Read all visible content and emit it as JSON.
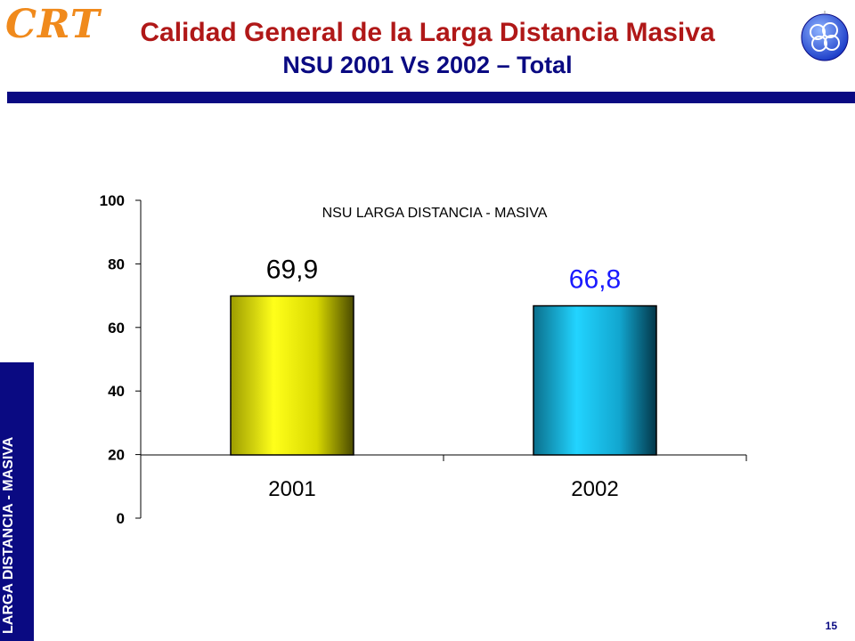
{
  "header": {
    "logo_text": "CRT",
    "title": "Calidad General de la Larga Distancia Masiva",
    "subtitle": "NSU  2001 Vs 2002 – Total",
    "globe_icon": "globe-icon"
  },
  "sidebar": {
    "label": "LARGA DISTANCIA - MASIVA"
  },
  "footer": {
    "page_number": "15"
  },
  "colors": {
    "brand_blue": "#0a0a82",
    "title_red": "#b01818",
    "logo_orange": "#f08a1c",
    "bar_2001": "#f2f20a",
    "bar_2002": "#1ec8f0",
    "label_2002": "#1a1aff"
  },
  "chart_data": {
    "type": "bar",
    "title": "NSU LARGA DISTANCIA - MASIVA",
    "categories": [
      "2001",
      "2002"
    ],
    "values": [
      69.9,
      66.8
    ],
    "data_labels": [
      "69,9",
      "66,8"
    ],
    "xlabel": "",
    "ylabel": "",
    "ylim": [
      0,
      100
    ],
    "yticks": [
      "0",
      "20",
      "40",
      "60",
      "80",
      "100"
    ],
    "grid": false
  }
}
